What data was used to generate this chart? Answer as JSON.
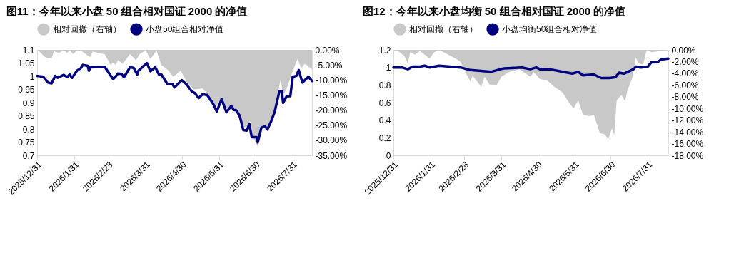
{
  "chart_data": [
    {
      "type": "line",
      "title": "图11：今年以来小盘 50 组合相对国证 2000 的净值",
      "legend": "top",
      "grid": false,
      "xlim": [
        "2025-12-31",
        "2026-08-16"
      ],
      "xticks": [
        {
          "value": "2025-12-31",
          "label": "2025/12/31"
        },
        {
          "value": "2026-01-31",
          "label": "2026/1/31"
        },
        {
          "value": "2026-02-28",
          "label": "2026/2/28"
        },
        {
          "value": "2026-03-31",
          "label": "2026/3/31"
        },
        {
          "value": "2026-04-30",
          "label": "2026/4/30"
        },
        {
          "value": "2026-05-31",
          "label": "2026/5/31"
        },
        {
          "value": "2026-06-30",
          "label": "2026/6/30"
        },
        {
          "value": "2026-07-31",
          "label": "2026/7/31"
        }
      ],
      "ylim": [
        0.7,
        1.1
      ],
      "yticks": [
        0.7,
        0.75,
        0.8,
        0.85,
        0.9,
        0.95,
        1,
        1.05,
        1.1
      ],
      "y2lim": [
        -35,
        0
      ],
      "y2ticks": [
        {
          "value": -35,
          "label": "-35.00%"
        },
        {
          "value": -30,
          "label": "-30.00%"
        },
        {
          "value": -25,
          "label": "-25.00%"
        },
        {
          "value": -20,
          "label": "-20.00%"
        },
        {
          "value": -15,
          "label": "-15.00%"
        },
        {
          "value": -10,
          "label": "-10.00%"
        },
        {
          "value": -5,
          "label": "-5.00%"
        },
        {
          "value": 0,
          "label": "0.00%"
        }
      ],
      "series": [
        {
          "name": "相对回撤（右轴）",
          "type": "area",
          "axis": "y2",
          "color": "#c8c8c8",
          "x": [
            "2025-12-31",
            "2026-01-02",
            "2026-01-06",
            "2026-01-08",
            "2026-01-12",
            "2026-01-14",
            "2026-01-18",
            "2026-01-22",
            "2026-01-25",
            "2026-01-27",
            "2026-01-30",
            "2026-02-02",
            "2026-02-06",
            "2026-02-13",
            "2026-02-15",
            "2026-02-25",
            "2026-03-02",
            "2026-03-04",
            "2026-03-06",
            "2026-03-08",
            "2026-03-12",
            "2026-03-18",
            "2026-03-23",
            "2026-03-26",
            "2026-03-31",
            "2026-04-04",
            "2026-04-09",
            "2026-04-13",
            "2026-04-18",
            "2026-04-23",
            "2026-04-29",
            "2026-05-04",
            "2026-05-10",
            "2026-05-17",
            "2026-05-22",
            "2026-05-28",
            "2026-06-02",
            "2026-06-05",
            "2026-06-10",
            "2026-06-14",
            "2026-06-19",
            "2026-06-24",
            "2026-06-26",
            "2026-06-28",
            "2026-07-02",
            "2026-07-06",
            "2026-07-11",
            "2026-07-16",
            "2026-07-21",
            "2026-07-23",
            "2026-07-26",
            "2026-07-30",
            "2026-08-04",
            "2026-08-07",
            "2026-08-10",
            "2026-08-16"
          ],
          "values": [
            0,
            -0.6,
            -2.2,
            -2.8,
            -2.8,
            -0.5,
            -1.0,
            -0.2,
            -1.0,
            -0.2,
            -1.4,
            -0.2,
            -0.5,
            -2.4,
            -0.6,
            -1.4,
            -5.0,
            -4.2,
            -5.0,
            -3.4,
            -4.6,
            -1.4,
            -3.4,
            -1.4,
            -0.2,
            -3.0,
            -0.2,
            -5.0,
            -6.5,
            -8.9,
            -6.9,
            -10.5,
            -13.2,
            -12.8,
            -14.8,
            -19.1,
            -15.6,
            -19.5,
            -18.3,
            -19.9,
            -25.4,
            -25.8,
            -23.5,
            -29.0,
            -32.1,
            -25.4,
            -25.8,
            -19.9,
            -9.7,
            -15.2,
            -12.8,
            -8.1,
            -3.0,
            -6.1,
            -4.6,
            -6.5
          ]
        },
        {
          "name": "小盘50组合相对净值",
          "color": "#000080",
          "x": [
            "2025-12-31",
            "2026-01-05",
            "2026-01-09",
            "2026-01-12",
            "2026-01-15",
            "2026-01-17",
            "2026-01-22",
            "2026-01-25",
            "2026-01-27",
            "2026-01-29",
            "2026-02-02",
            "2026-02-05",
            "2026-02-07",
            "2026-02-11",
            "2026-02-12",
            "2026-02-13",
            "2026-02-25",
            "2026-03-04",
            "2026-03-06",
            "2026-03-08",
            "2026-03-11",
            "2026-03-13",
            "2026-03-18",
            "2026-03-21",
            "2026-03-24",
            "2026-03-25",
            "2026-04-01",
            "2026-04-04",
            "2026-04-08",
            "2026-04-11",
            "2026-04-13",
            "2026-04-18",
            "2026-04-22",
            "2026-04-24",
            "2026-04-30",
            "2026-05-04",
            "2026-05-08",
            "2026-05-11",
            "2026-05-14",
            "2026-05-17",
            "2026-05-21",
            "2026-05-26",
            "2026-05-29",
            "2026-06-02",
            "2026-06-06",
            "2026-06-10",
            "2026-06-12",
            "2026-06-14",
            "2026-06-17",
            "2026-06-20",
            "2026-06-23",
            "2026-06-25",
            "2026-06-27",
            "2026-07-01",
            "2026-07-02",
            "2026-07-05",
            "2026-07-08",
            "2026-07-10",
            "2026-07-13",
            "2026-07-16",
            "2026-07-20",
            "2026-07-22",
            "2026-07-23",
            "2026-07-26",
            "2026-07-29",
            "2026-07-31",
            "2026-08-03",
            "2026-08-05",
            "2026-08-08",
            "2026-08-13",
            "2026-08-16"
          ],
          "values": [
            1.001,
            0.998,
            0.976,
            0.973,
            1.001,
            0.994,
            1.005,
            0.997,
            1.007,
            0.994,
            1.021,
            1.03,
            1.043,
            1.039,
            1.021,
            1.034,
            1.036,
            0.989,
            0.998,
            1.01,
            1.009,
            0.996,
            1.034,
            1.032,
            1.007,
            1.021,
            1.05,
            1.019,
            1.034,
            1.007,
            1.007,
            0.971,
            0.971,
            0.958,
            0.985,
            0.969,
            0.944,
            0.935,
            0.917,
            0.931,
            0.929,
            0.895,
            0.866,
            0.913,
            0.863,
            0.888,
            0.872,
            0.871,
            0.85,
            0.796,
            0.794,
            0.819,
            0.769,
            0.769,
            0.749,
            0.805,
            0.81,
            0.798,
            0.828,
            0.864,
            0.944,
            0.944,
            0.899,
            0.924,
            0.924,
            0.998,
            1.001,
            1.023,
            0.976,
            0.998,
            0.982
          ]
        }
      ]
    },
    {
      "type": "line",
      "title": "图12：今年以来小盘均衡 50 组合相对国证 2000 的净值",
      "legend": "top",
      "grid": false,
      "xlim": [
        "2025-12-31",
        "2026-08-17"
      ],
      "xticks": [
        {
          "value": "2025-12-31",
          "label": "2025/12/31"
        },
        {
          "value": "2026-01-31",
          "label": "2026/1/31"
        },
        {
          "value": "2026-02-28",
          "label": "2026/2/28"
        },
        {
          "value": "2026-03-31",
          "label": "2026/3/31"
        },
        {
          "value": "2026-04-30",
          "label": "2026/4/30"
        },
        {
          "value": "2026-05-31",
          "label": "2026/5/31"
        },
        {
          "value": "2026-06-30",
          "label": "2026/6/30"
        },
        {
          "value": "2026-07-31",
          "label": "2026/7/31"
        }
      ],
      "ylim": [
        0,
        1.2
      ],
      "yticks": [
        0,
        0.2,
        0.4,
        0.6,
        0.8,
        1,
        1.2
      ],
      "y2lim": [
        -18,
        0
      ],
      "y2ticks": [
        {
          "value": -18,
          "label": "-18.00%"
        },
        {
          "value": -16,
          "label": "-16.00%"
        },
        {
          "value": -14,
          "label": "-14.00%"
        },
        {
          "value": -12,
          "label": "-12.00%"
        },
        {
          "value": -10,
          "label": "-10.00%"
        },
        {
          "value": -8,
          "label": "-8.00%"
        },
        {
          "value": -6,
          "label": "-6.00%"
        },
        {
          "value": -4,
          "label": "-4.00%"
        },
        {
          "value": -2,
          "label": "-2.00%"
        },
        {
          "value": 0,
          "label": "0.00%"
        }
      ],
      "series": [
        {
          "name": "相对回撤（右轴）",
          "type": "area",
          "axis": "y2",
          "color": "#c8c8c8",
          "x": [
            "2025-12-31",
            "2026-01-04",
            "2026-01-09",
            "2026-01-12",
            "2026-01-14",
            "2026-01-18",
            "2026-01-22",
            "2026-01-26",
            "2026-01-30",
            "2026-02-03",
            "2026-02-07",
            "2026-02-21",
            "2026-02-25",
            "2026-03-01",
            "2026-03-05",
            "2026-03-07",
            "2026-03-14",
            "2026-03-17",
            "2026-03-21",
            "2026-03-27",
            "2026-03-31",
            "2026-04-06",
            "2026-04-15",
            "2026-04-24",
            "2026-04-27",
            "2026-05-02",
            "2026-05-08",
            "2026-05-14",
            "2026-05-21",
            "2026-05-25",
            "2026-05-30",
            "2026-06-03",
            "2026-06-07",
            "2026-06-12",
            "2026-06-16",
            "2026-06-21",
            "2026-06-25",
            "2026-06-28",
            "2026-07-01",
            "2026-07-03",
            "2026-07-05",
            "2026-07-09",
            "2026-07-12",
            "2026-07-14",
            "2026-07-18",
            "2026-07-21",
            "2026-07-23",
            "2026-07-27",
            "2026-07-30",
            "2026-08-03",
            "2026-08-17"
          ],
          "values": [
            0,
            -0.2,
            -1.0,
            -2.3,
            -0.4,
            -0.8,
            -0.2,
            -0.8,
            -1.5,
            -0.4,
            0,
            -1.5,
            -2.1,
            -3.8,
            -5.4,
            -4.4,
            -6.3,
            -4.6,
            -5.9,
            -6.0,
            -4.6,
            -3.8,
            -3.3,
            -4.6,
            -3.8,
            -5.0,
            -5.2,
            -6.3,
            -7.3,
            -8.6,
            -10.0,
            -8.6,
            -11.1,
            -11.3,
            -11.1,
            -14.2,
            -14.4,
            -15.3,
            -13.4,
            -14.6,
            -8.6,
            -7.7,
            -8.8,
            -6.9,
            -4.8,
            -1.3,
            -2.3,
            -2.5,
            0,
            -0.4,
            0
          ]
        },
        {
          "name": "小盘均衡50组合相对净值",
          "color": "#000080",
          "x": [
            "2025-12-31",
            "2026-01-07",
            "2026-01-12",
            "2026-01-16",
            "2026-01-22",
            "2026-01-26",
            "2026-01-30",
            "2026-02-07",
            "2026-02-25",
            "2026-03-05",
            "2026-03-14",
            "2026-03-22",
            "2026-04-02",
            "2026-04-17",
            "2026-04-24",
            "2026-04-29",
            "2026-05-02",
            "2026-05-10",
            "2026-05-21",
            "2026-05-29",
            "2026-06-03",
            "2026-06-07",
            "2026-06-16",
            "2026-06-22",
            "2026-06-29",
            "2026-07-04",
            "2026-07-07",
            "2026-07-11",
            "2026-07-19",
            "2026-07-21",
            "2026-07-25",
            "2026-07-31",
            "2026-08-03",
            "2026-08-08",
            "2026-08-11",
            "2026-08-17"
          ],
          "values": [
            1.0,
            1.0,
            0.98,
            1.01,
            1.01,
            1.02,
            1.0,
            1.02,
            1.0,
            0.97,
            0.96,
            0.95,
            0.99,
            1.0,
            0.98,
            1.0,
            0.98,
            0.98,
            0.95,
            0.93,
            0.95,
            0.91,
            0.92,
            0.88,
            0.88,
            0.89,
            0.94,
            0.93,
            0.98,
            1.01,
            1.0,
            1.01,
            1.06,
            1.06,
            1.09,
            1.1
          ]
        }
      ]
    }
  ]
}
